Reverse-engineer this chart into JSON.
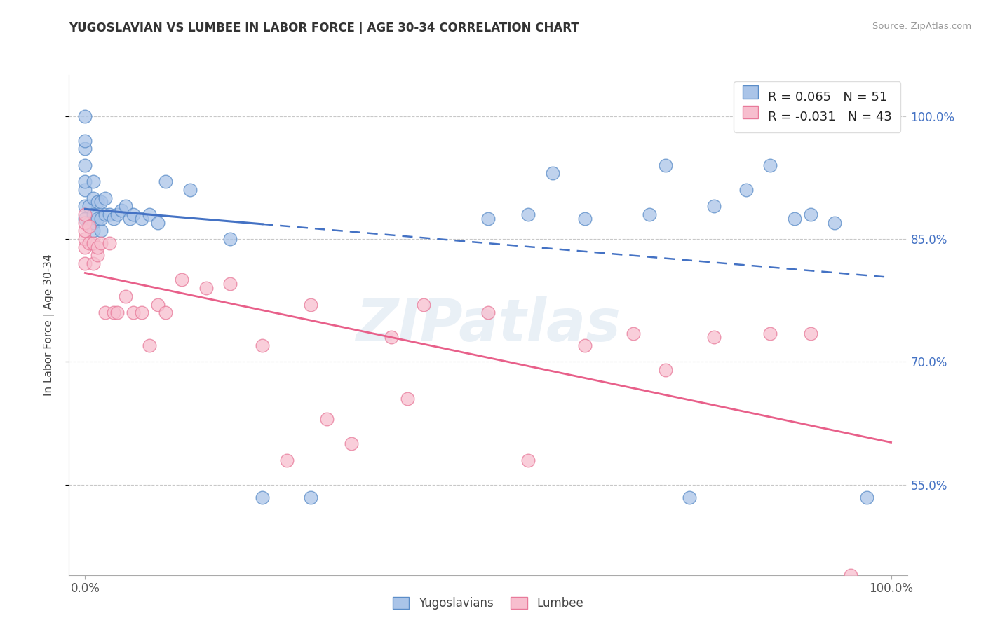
{
  "title": "YUGOSLAVIAN VS LUMBEE IN LABOR FORCE | AGE 30-34 CORRELATION CHART",
  "source": "Source: ZipAtlas.com",
  "ylabel": "In Labor Force | Age 30-34",
  "xlim": [
    -0.02,
    1.02
  ],
  "ylim": [
    0.44,
    1.05
  ],
  "yticks": [
    0.55,
    0.7,
    0.85,
    1.0
  ],
  "ytick_labels": [
    "55.0%",
    "70.0%",
    "85.0%",
    "100.0%"
  ],
  "xtick_labels": [
    "0.0%",
    "100.0%"
  ],
  "xticks": [
    0.0,
    1.0
  ],
  "legend_r_yug": "0.065",
  "legend_n_yug": 51,
  "legend_r_lum": "-0.031",
  "legend_n_lum": 43,
  "yug_fill_color": "#aac4e8",
  "lum_fill_color": "#f7bece",
  "yug_edge_color": "#5b8dc8",
  "lum_edge_color": "#e87a9a",
  "yug_line_color": "#4472c4",
  "lum_line_color": "#e8608a",
  "watermark_text": "ZIPatlas",
  "yug_scatter_x": [
    0.0,
    0.0,
    0.0,
    0.0,
    0.0,
    0.0,
    0.0,
    0.0,
    0.005,
    0.005,
    0.01,
    0.01,
    0.01,
    0.01,
    0.01,
    0.015,
    0.015,
    0.02,
    0.02,
    0.02,
    0.025,
    0.025,
    0.03,
    0.035,
    0.04,
    0.045,
    0.05,
    0.055,
    0.06,
    0.07,
    0.08,
    0.09,
    0.1,
    0.13,
    0.18,
    0.22,
    0.28,
    0.5,
    0.55,
    0.58,
    0.62,
    0.7,
    0.72,
    0.75,
    0.78,
    0.82,
    0.85,
    0.88,
    0.9,
    0.93,
    0.97
  ],
  "yug_scatter_y": [
    0.875,
    0.89,
    0.91,
    0.92,
    0.94,
    0.96,
    0.97,
    1.0,
    0.87,
    0.89,
    0.86,
    0.87,
    0.88,
    0.9,
    0.92,
    0.875,
    0.895,
    0.86,
    0.875,
    0.895,
    0.88,
    0.9,
    0.88,
    0.875,
    0.88,
    0.885,
    0.89,
    0.875,
    0.88,
    0.875,
    0.88,
    0.87,
    0.92,
    0.91,
    0.85,
    0.535,
    0.535,
    0.875,
    0.88,
    0.93,
    0.875,
    0.88,
    0.94,
    0.535,
    0.89,
    0.91,
    0.94,
    0.875,
    0.88,
    0.87,
    0.535
  ],
  "lum_scatter_x": [
    0.0,
    0.0,
    0.0,
    0.0,
    0.0,
    0.0,
    0.005,
    0.005,
    0.01,
    0.01,
    0.015,
    0.015,
    0.02,
    0.025,
    0.03,
    0.035,
    0.04,
    0.05,
    0.06,
    0.07,
    0.08,
    0.09,
    0.1,
    0.12,
    0.15,
    0.18,
    0.22,
    0.28,
    0.38,
    0.42,
    0.5,
    0.55,
    0.62,
    0.68,
    0.72,
    0.78,
    0.85,
    0.9,
    0.95,
    0.25,
    0.3,
    0.33,
    0.4
  ],
  "lum_scatter_y": [
    0.82,
    0.84,
    0.85,
    0.86,
    0.87,
    0.88,
    0.845,
    0.865,
    0.82,
    0.845,
    0.83,
    0.84,
    0.845,
    0.76,
    0.845,
    0.76,
    0.76,
    0.78,
    0.76,
    0.76,
    0.72,
    0.77,
    0.76,
    0.8,
    0.79,
    0.795,
    0.72,
    0.77,
    0.73,
    0.77,
    0.76,
    0.58,
    0.72,
    0.735,
    0.69,
    0.73,
    0.735,
    0.735,
    0.44,
    0.58,
    0.63,
    0.6,
    0.655
  ]
}
